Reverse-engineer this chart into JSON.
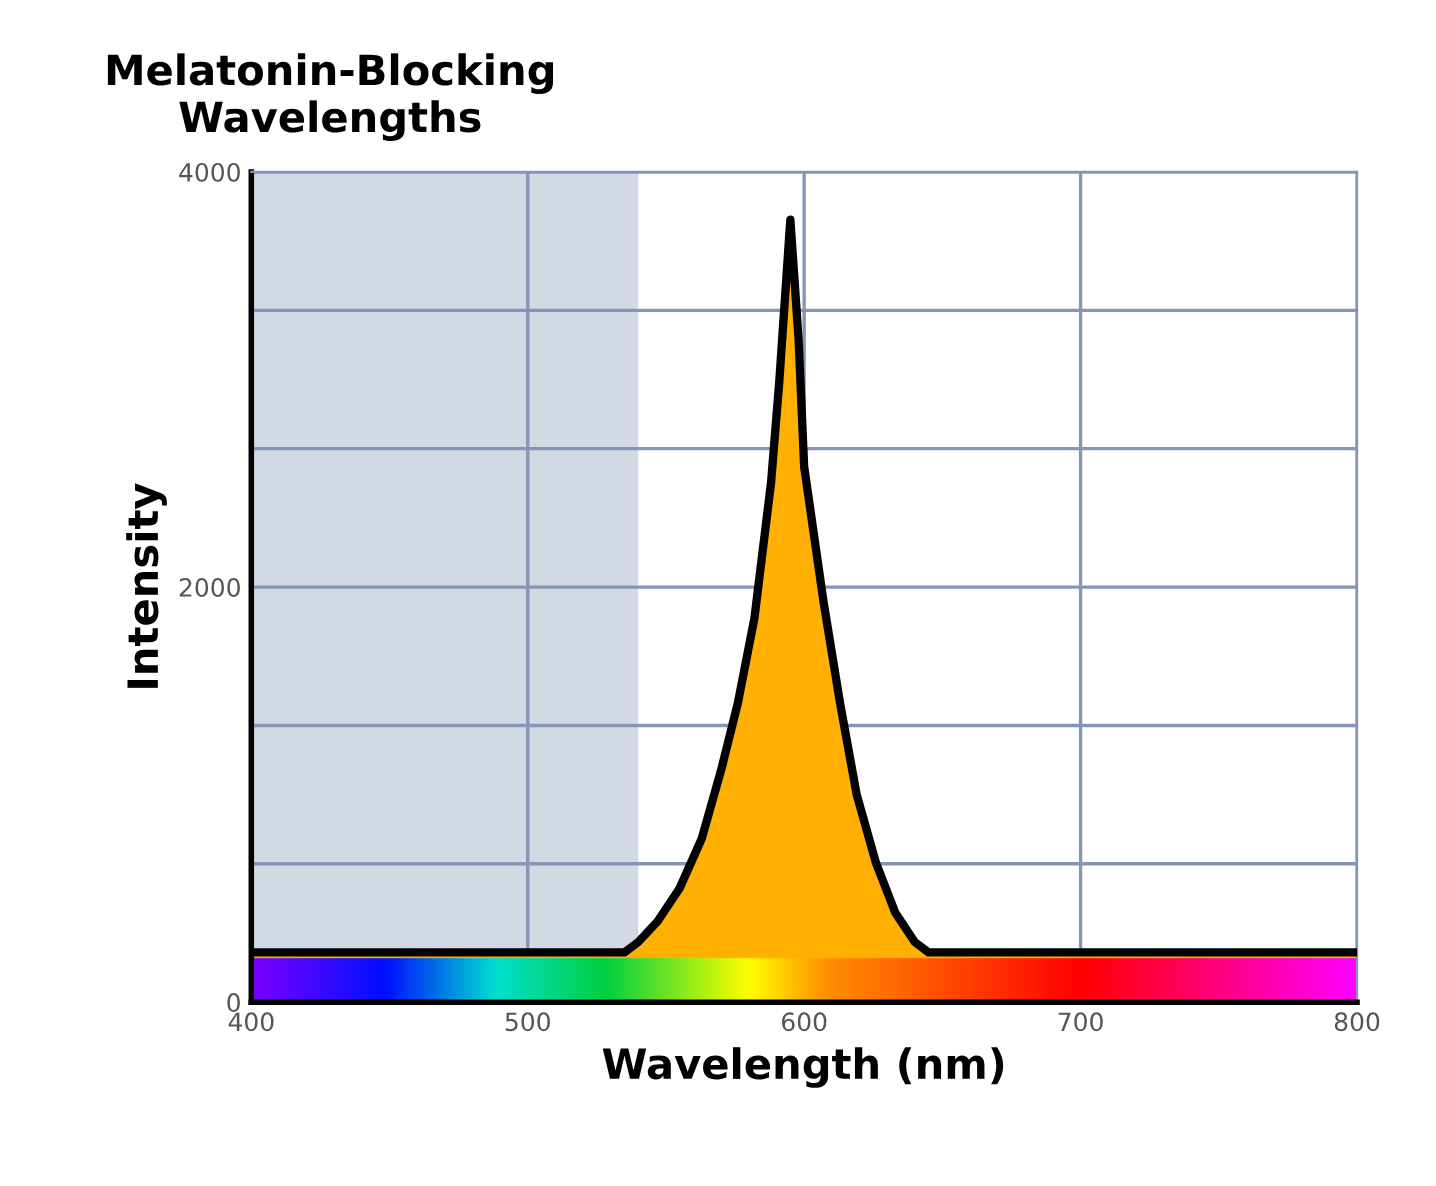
{
  "chart_data": {
    "type": "area",
    "title": "Melatonin-Blocking\nWavelengths",
    "xlabel": "Wavelength (nm)",
    "ylabel": "Intensity",
    "series": [
      {
        "color": "#ffb000",
        "x": [
          400,
          535,
          540,
          547,
          555,
          563,
          570,
          576,
          582,
          588,
          591,
          595,
          598,
          600,
          607,
          613,
          619,
          626,
          633,
          640,
          645,
          800
        ],
        "values": [
          240,
          240,
          290,
          390,
          550,
          790,
          1120,
          1440,
          1850,
          2500,
          2990,
          3770,
          3190,
          2580,
          1930,
          1440,
          1000,
          670,
          430,
          290,
          240,
          240
        ]
      }
    ],
    "xlim": [
      400,
      800
    ],
    "ylim": [
      0,
      4000
    ],
    "xticks": [
      400,
      500,
      600,
      700,
      800
    ],
    "yticks": [
      0,
      {
        "value": 667,
        "label": null
      },
      {
        "value": 1333,
        "label": null
      },
      2000,
      {
        "value": 2667,
        "label": null
      },
      {
        "value": 3333,
        "label": null
      },
      4000
    ],
    "bands": [
      {
        "axis": "x",
        "from": 400,
        "to": 540,
        "color": "#d3d9e4"
      }
    ],
    "grid": true,
    "legend": false
  }
}
